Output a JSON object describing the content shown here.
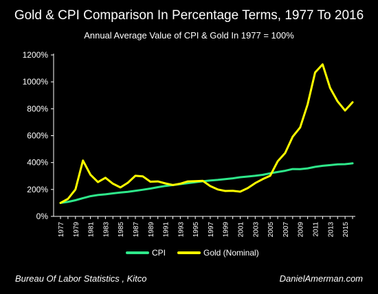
{
  "chart_data": {
    "type": "line",
    "title": "Gold & CPI Comparison In Percentage Terms, 1977 To 2016",
    "subtitle": "Annual Average Value of CPI & Gold In 1977 = 100%",
    "x": [
      1977,
      1978,
      1979,
      1980,
      1981,
      1982,
      1983,
      1984,
      1985,
      1986,
      1987,
      1988,
      1989,
      1990,
      1991,
      1992,
      1993,
      1994,
      1995,
      1996,
      1997,
      1998,
      1999,
      2000,
      2001,
      2002,
      2003,
      2004,
      2005,
      2006,
      2007,
      2008,
      2009,
      2010,
      2011,
      2012,
      2013,
      2014,
      2015,
      2016
    ],
    "x_tick_labels": [
      "1977",
      "1979",
      "1981",
      "1983",
      "1985",
      "1987",
      "1989",
      "1991",
      "1993",
      "1995",
      "1997",
      "1999",
      "2001",
      "2003",
      "2005",
      "2007",
      "2009",
      "2011",
      "2013",
      "2015"
    ],
    "ylim": [
      0,
      1200
    ],
    "y_tick_labels": [
      "0%",
      "200%",
      "400%",
      "600%",
      "800%",
      "1000%",
      "1200%"
    ],
    "y_ticks": [
      0,
      200,
      400,
      600,
      800,
      1000,
      1200
    ],
    "series": [
      {
        "name": "CPI",
        "color": "#2ee88a",
        "values": [
          100,
          108,
          120,
          136,
          150,
          159,
          164,
          171,
          177,
          183,
          190,
          198,
          207,
          217,
          226,
          233,
          240,
          247,
          254,
          261,
          267,
          271,
          277,
          283,
          291,
          296,
          302,
          309,
          320,
          330,
          339,
          352,
          351,
          357,
          368,
          376,
          381,
          387,
          388,
          394
        ]
      },
      {
        "name": "Gold (Nominal)",
        "color": "#ffff00",
        "values": [
          100,
          130,
          200,
          415,
          310,
          255,
          287,
          243,
          215,
          250,
          302,
          297,
          258,
          260,
          245,
          233,
          243,
          260,
          262,
          264,
          225,
          200,
          189,
          190,
          184,
          210,
          247,
          277,
          302,
          409,
          471,
          592,
          661,
          833,
          1070,
          1130,
          955,
          855,
          787,
          848
        ]
      }
    ],
    "grid": false,
    "legend_position": "bottom-center",
    "sources": "Bureau Of Labor Statistics , Kitco",
    "site": "DanielAmerman.com"
  }
}
